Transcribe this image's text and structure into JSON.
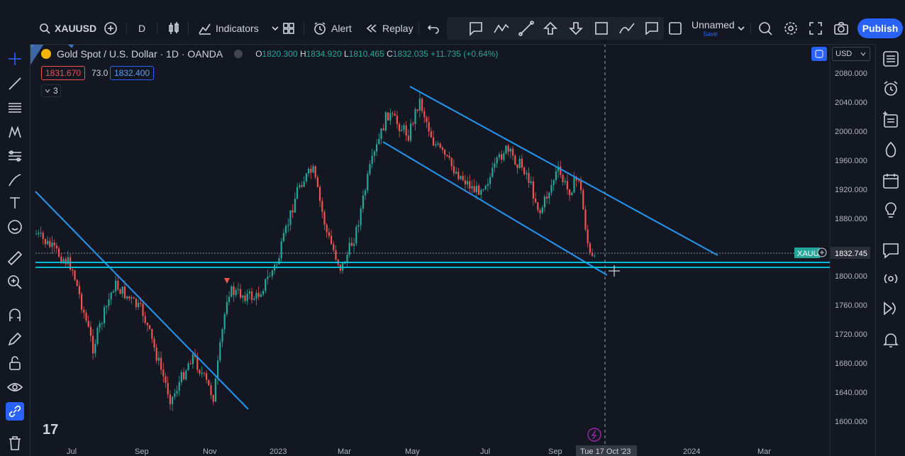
{
  "toolbar": {
    "symbol": "XAUUSD",
    "interval": "D",
    "indicators_label": "Indicators",
    "alert_label": "Alert",
    "replay_label": "Replay",
    "layout_name": "Unnamed",
    "layout_sub": "Save",
    "publish_label": "Publish"
  },
  "legend": {
    "title": "Gold Spot / U.S. Dollar · 1D · OANDA",
    "open_label": "O",
    "open": "1820.300",
    "high_label": "H",
    "high": "1834.920",
    "low_label": "L",
    "low": "1810.465",
    "close_label": "C",
    "close": "1832.035",
    "change": "+11.735 (+0.64%)",
    "bid": "1831.670",
    "spread": "73.0",
    "ask": "1832.400",
    "collapse_count": "3"
  },
  "price_axis": {
    "currency": "USD",
    "labels": [
      "2080.000",
      "2040.000",
      "2000.000",
      "1960.000",
      "1920.000",
      "1880.000",
      "1800.000",
      "1760.000",
      "1720.000",
      "1680.000",
      "1640.000",
      "1600.000"
    ],
    "current_symbol": "XAUU",
    "current_price": "1832.745"
  },
  "time_axis": {
    "labels": [
      "Jul",
      "Sep",
      "Nov",
      "2023",
      "Mar",
      "May",
      "Jul",
      "Sep",
      "2024",
      "Mar"
    ],
    "crosshair_date": "Tue 17 Oct '23"
  },
  "colors": {
    "up": "#26a69a",
    "down": "#ef5350",
    "trendline": "#2196f3",
    "support": "#00bcd4",
    "accent": "#2962ff",
    "background": "#131722"
  }
}
